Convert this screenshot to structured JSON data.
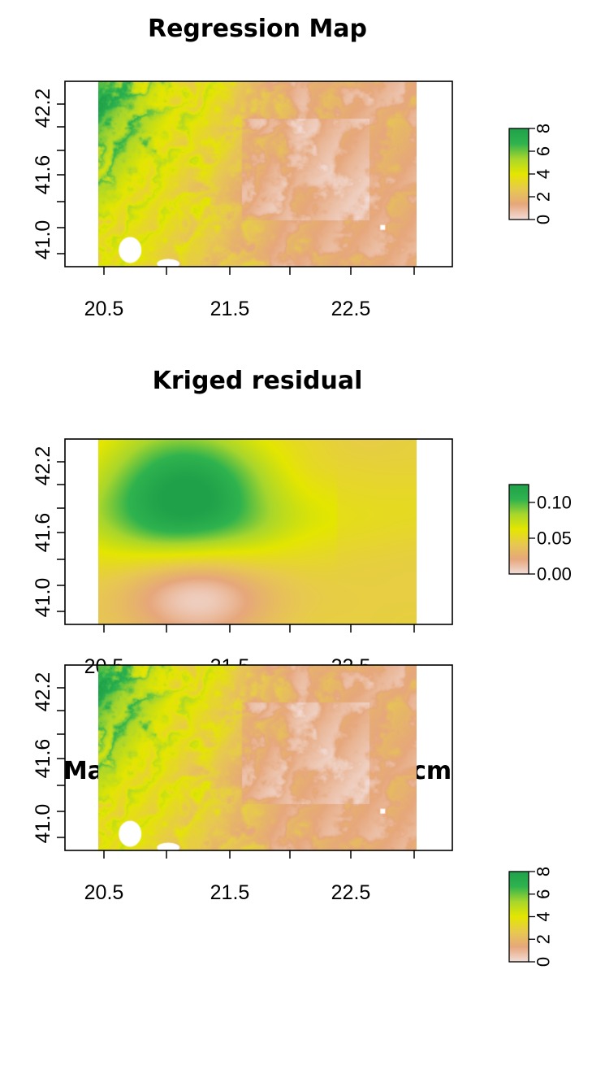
{
  "chart_data": [
    {
      "type": "heatmap",
      "title": "Regression Map",
      "xlabel": "",
      "ylabel": "",
      "x_ticks": [
        "20.5",
        "21.5",
        "22.5"
      ],
      "y_ticks": [
        "41.0",
        "41.6",
        "42.2"
      ],
      "xlim": [
        20.45,
        23.0
      ],
      "ylim": [
        40.85,
        42.35
      ],
      "legend": {
        "position": "right",
        "ticks": [
          "0",
          "2",
          "4",
          "6",
          "8"
        ],
        "range": [
          0,
          8
        ],
        "colors": [
          "#f2dcd8",
          "#e6a77b",
          "#e7c94f",
          "#e4e600",
          "#a8d62c",
          "#2fb34e",
          "#1fa14a"
        ]
      }
    },
    {
      "type": "heatmap",
      "title": "Kriged residual",
      "xlabel": "",
      "ylabel": "",
      "x_ticks": [
        "20.5",
        "21.5",
        "22.5"
      ],
      "y_ticks": [
        "41.0",
        "41.6",
        "42.2"
      ],
      "xlim": [
        20.45,
        23.0
      ],
      "ylim": [
        40.85,
        42.35
      ],
      "legend": {
        "position": "right",
        "ticks": [
          "0.00",
          "0.05",
          "0.10"
        ],
        "range": [
          0.0,
          0.125
        ],
        "colors": [
          "#f2dcd8",
          "#e6a77b",
          "#e7c94f",
          "#e4e600",
          "#a8d62c",
          "#2fb34e",
          "#1fa14a"
        ]
      }
    },
    {
      "type": "heatmap",
      "title": "Macedonia SOC Map 0-30cm",
      "xlabel": "",
      "ylabel": "",
      "x_ticks": [
        "20.5",
        "21.5",
        "22.5"
      ],
      "y_ticks": [
        "41.0",
        "41.6",
        "42.2"
      ],
      "xlim": [
        20.45,
        23.0
      ],
      "ylim": [
        40.85,
        42.35
      ],
      "legend": {
        "position": "right",
        "ticks": [
          "0",
          "2",
          "4",
          "6",
          "8"
        ],
        "range": [
          0,
          8
        ],
        "colors": [
          "#f2dcd8",
          "#e6a77b",
          "#e7c94f",
          "#e4e600",
          "#a8d62c",
          "#2fb34e",
          "#1fa14a"
        ]
      }
    }
  ]
}
